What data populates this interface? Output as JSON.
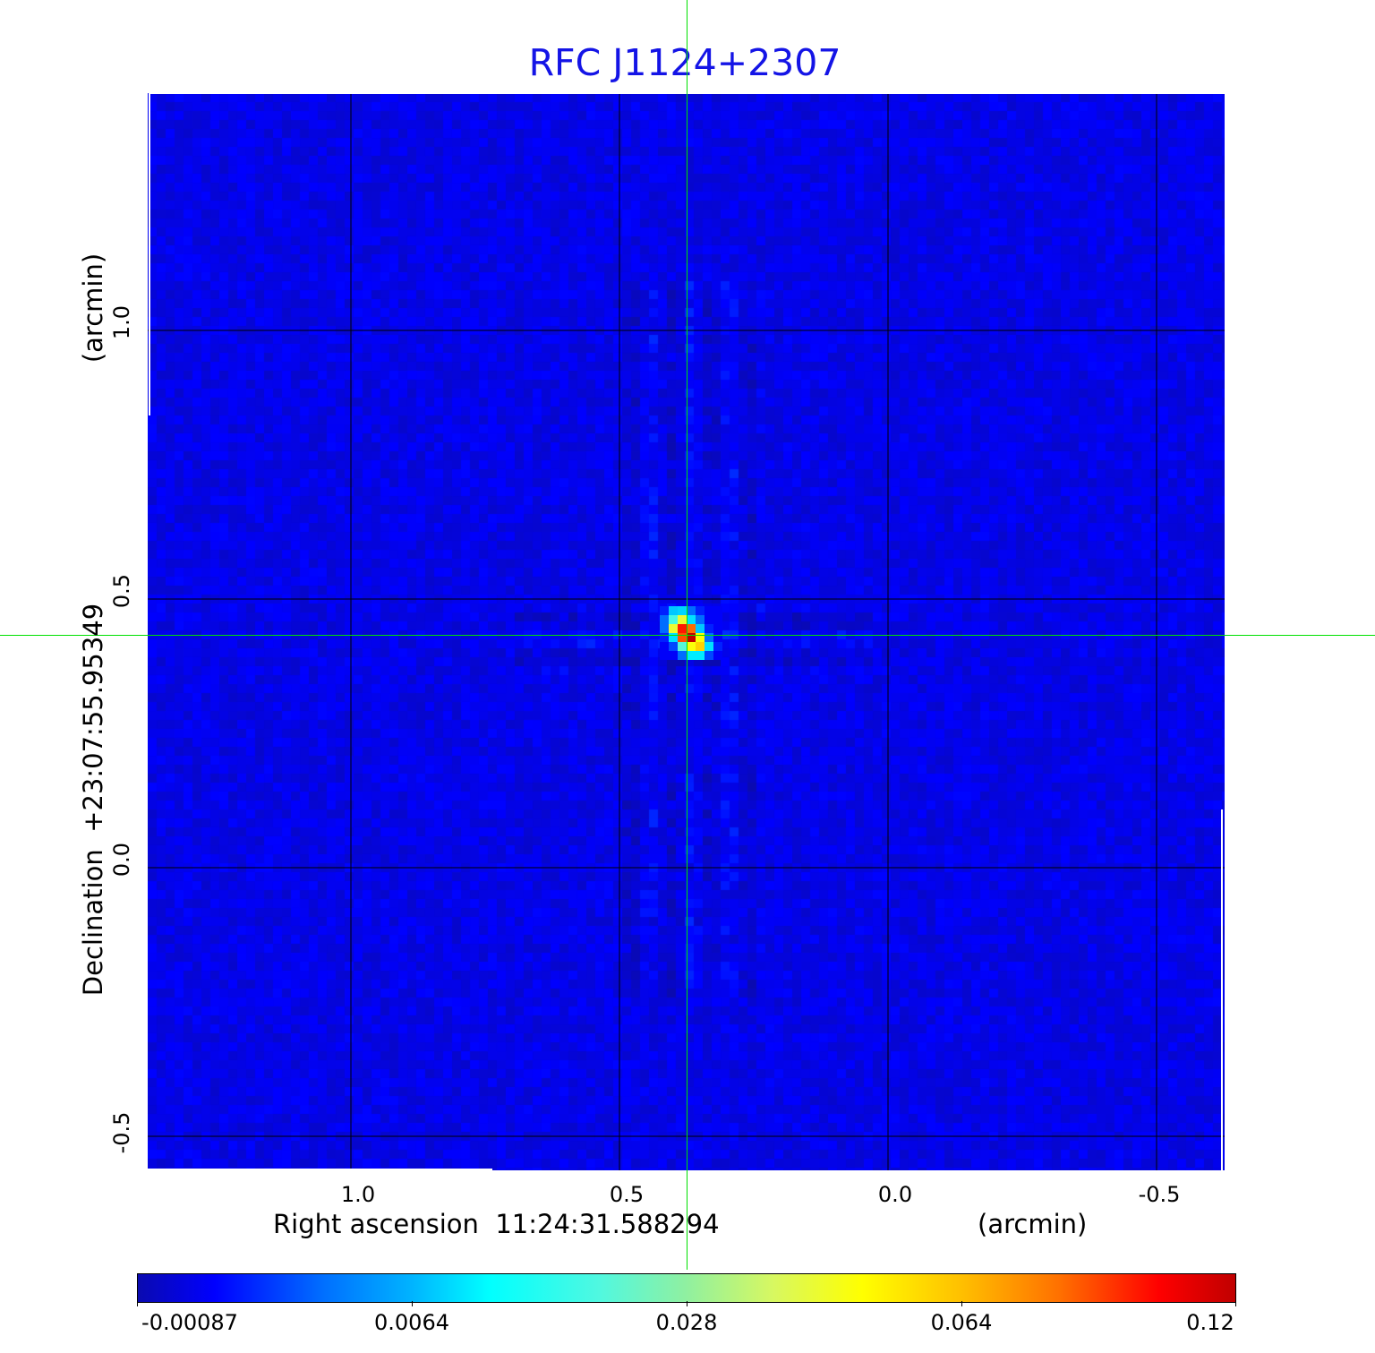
{
  "chart_data": {
    "type": "heatmap",
    "title": "RFC J1124+2307",
    "xlabel": "Right ascension  11:24:31.588294",
    "xunit": "(arcmin)",
    "ylabel": "Declination  +23:07:55.95349",
    "yunit": "(arcmin)",
    "x_ticks": [
      "1.0",
      "0.5",
      "0.0",
      "-0.5"
    ],
    "x_tick_values": [
      1.0,
      0.5,
      0.0,
      -0.5
    ],
    "y_ticks": [
      "1.0",
      "0.5",
      "0.0",
      "-0.5"
    ],
    "y_tick_values": [
      1.0,
      0.5,
      0.0,
      -0.5
    ],
    "xlim": [
      1.38,
      -0.63
    ],
    "ylim": [
      -0.56,
      1.44
    ],
    "grid": true,
    "grid_color": "#000000",
    "crosshair": {
      "x": 0.375,
      "y": 0.433,
      "color": "#00e000"
    },
    "colormap": "jet",
    "colorbar": {
      "placement": "bottom",
      "tick_labels": [
        "-0.00087",
        "0.0064",
        "0.028",
        "0.064",
        "0.12"
      ],
      "tick_values": [
        -0.00087,
        0.0064,
        0.028,
        0.064,
        0.12
      ]
    },
    "background_level_range": [
      -0.00087,
      0.002
    ],
    "source_pixels": [
      [
        0.002,
        0.008,
        0.009,
        0.004,
        0.002,
        0.001,
        0.001
      ],
      [
        0.004,
        0.02,
        0.045,
        0.01,
        0.004,
        0.001,
        0.001
      ],
      [
        0.004,
        0.045,
        0.1,
        0.085,
        0.008,
        0.002,
        0.001
      ],
      [
        0.002,
        0.01,
        0.09,
        0.12,
        0.05,
        0.004,
        0.001
      ],
      [
        0.001,
        0.003,
        0.022,
        0.05,
        0.06,
        0.01,
        0.002
      ],
      [
        0.001,
        0.001,
        0.004,
        0.011,
        0.011,
        0.003,
        0.001
      ]
    ]
  }
}
